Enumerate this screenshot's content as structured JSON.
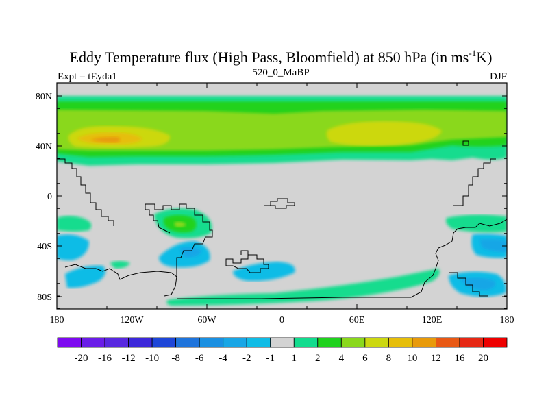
{
  "title": {
    "main": "Eddy Temperature flux (High Pass, Bloomfield) at 850 hPa (in ms",
    "sup": "-1",
    "end": "K)"
  },
  "left_label": "Expt = tEyda1",
  "center_label": "520_0_MaBP",
  "right_label": "DJF",
  "map_data": {
    "lat_ticks": [
      "80N",
      "40N",
      "0",
      "40S",
      "80S"
    ],
    "lon_ticks": [
      "180",
      "120W",
      "60W",
      "0",
      "60E",
      "120E",
      "180"
    ],
    "background_color": "#d3d3d3"
  },
  "colorbar": {
    "labels": [
      "-20",
      "-16",
      "-12",
      "-10",
      "-8",
      "-6",
      "-4",
      "-2",
      "-1",
      "1",
      "2",
      "4",
      "6",
      "8",
      "10",
      "12",
      "16",
      "20"
    ],
    "colors": [
      "#7d0af0",
      "#6a1de8",
      "#5828e0",
      "#3c28da",
      "#1e46d8",
      "#1e74dc",
      "#1a90e2",
      "#18a6e6",
      "#10bce6",
      "#d3d3d3",
      "#12dc8e",
      "#20d21e",
      "#8ad81c",
      "#ccd810",
      "#e6be0a",
      "#e89a0a",
      "#e85814",
      "#e62814",
      "#ee0000"
    ]
  }
}
